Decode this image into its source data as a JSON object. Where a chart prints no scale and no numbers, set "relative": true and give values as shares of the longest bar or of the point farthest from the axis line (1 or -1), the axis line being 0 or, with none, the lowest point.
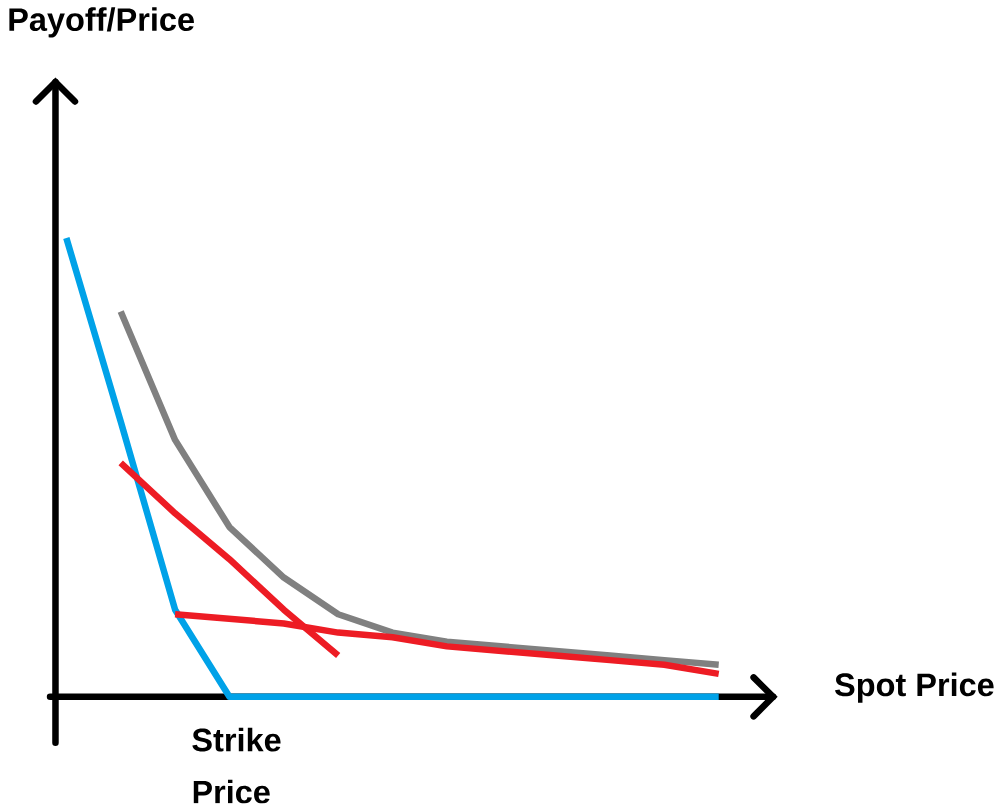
{
  "chart_data": {
    "type": "line",
    "relative": true,
    "xlabel": "Spot Price",
    "annotations": [
      "Payoff/Price",
      "Strike Price"
    ],
    "categories": [
      null,
      null,
      null,
      null,
      null,
      null,
      null,
      null,
      null,
      null,
      null,
      null,
      null
    ],
    "series": [
      {
        "color": "#808080",
        "values": [
          null,
          0.84,
          0.56,
          0.37,
          0.26,
          0.18,
          0.14,
          0.12,
          0.11,
          0.1,
          0.09,
          0.08,
          0.07
        ]
      },
      {
        "color": "#00a2e8",
        "values": [
          1.0,
          0.6,
          0.19,
          0,
          0,
          0,
          0,
          0,
          0,
          0,
          0,
          0,
          0
        ]
      },
      {
        "color": "#ed1c24",
        "values": [
          null,
          0.51,
          0.4,
          0.3,
          0.19,
          0.09,
          null,
          null,
          null,
          null,
          null,
          null,
          null
        ]
      },
      {
        "color": "#ed1c24",
        "values": [
          null,
          null,
          0.18,
          0.17,
          0.16,
          0.14,
          0.13,
          0.11,
          0.1,
          0.09,
          0.08,
          0.07,
          0.05
        ]
      }
    ]
  }
}
